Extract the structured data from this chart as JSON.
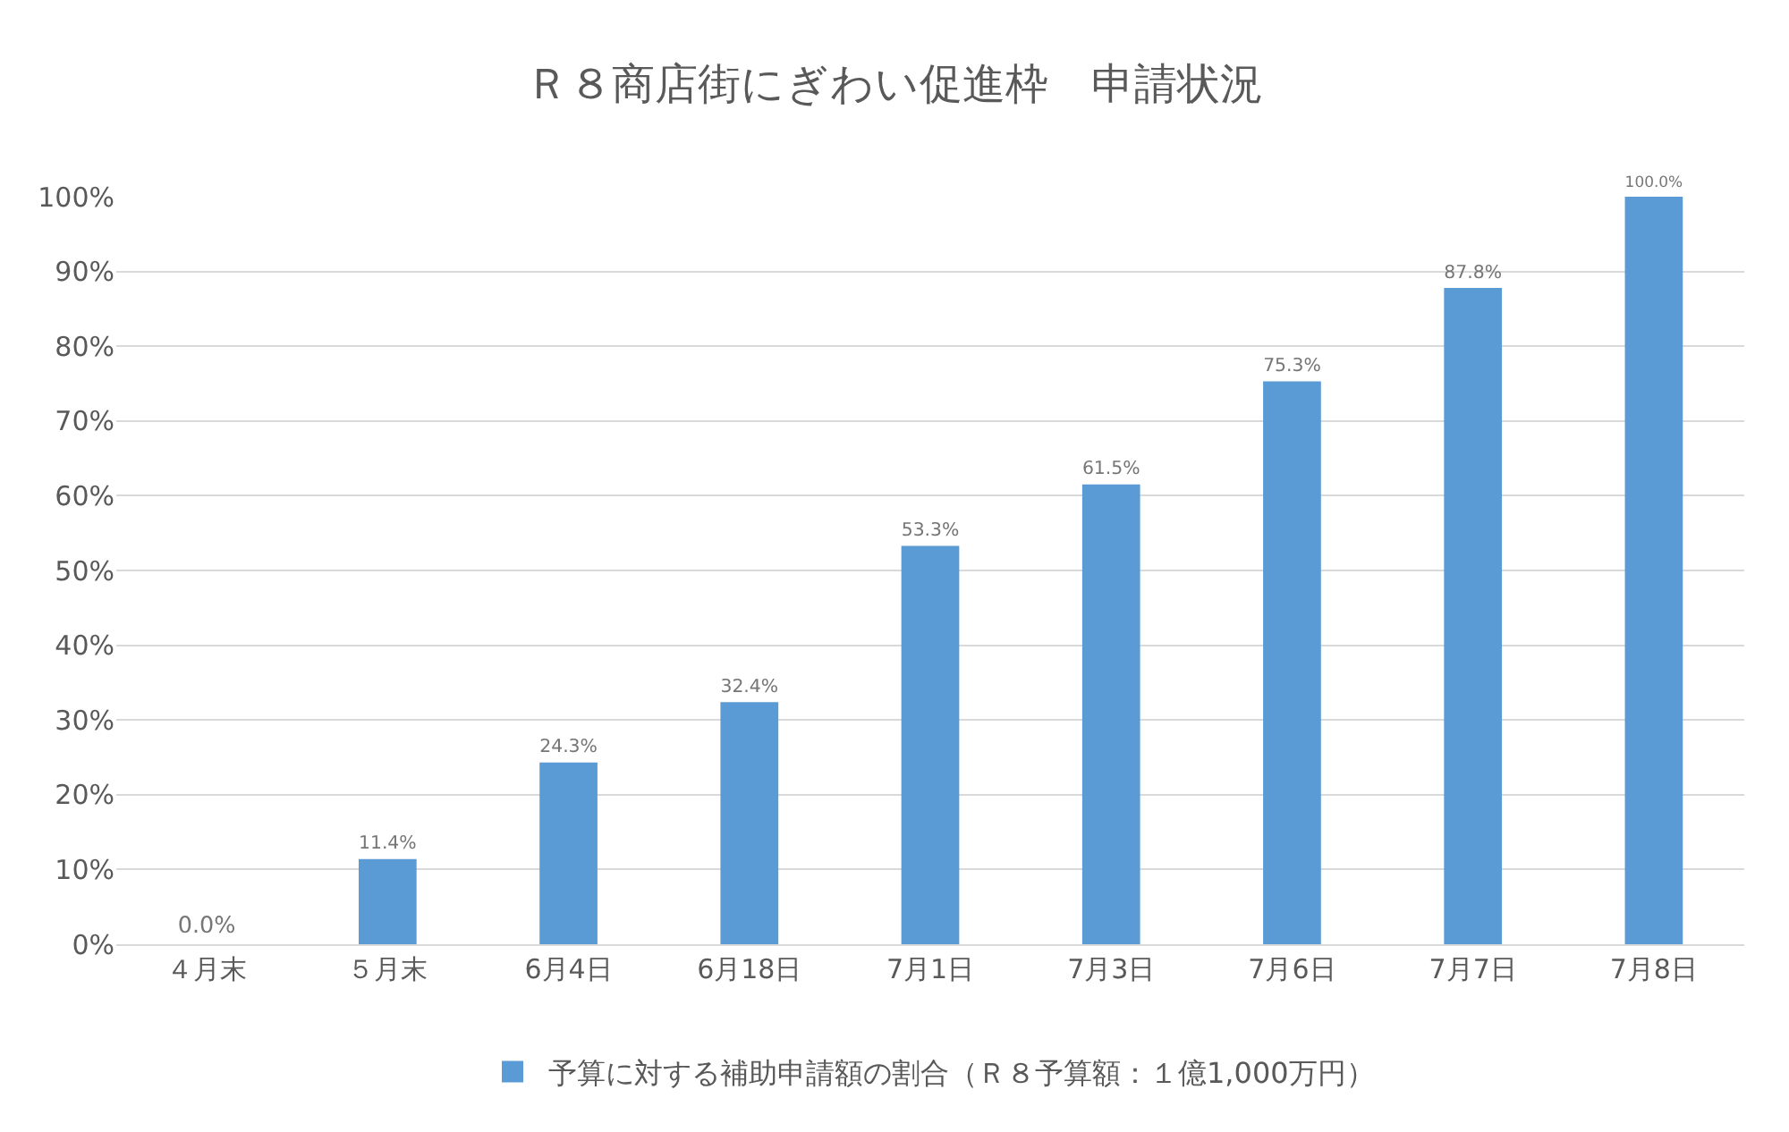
{
  "chart_data": {
    "type": "bar",
    "title": "Ｒ８商店街にぎわい促進枠　申請状況",
    "categories": [
      "４月末",
      "５月末",
      "6月4日",
      "6月18日",
      "7月1日",
      "7月3日",
      "7月6日",
      "7月7日",
      "7月8日"
    ],
    "series": [
      {
        "name": "予算に対する補助申請額の割合（Ｒ８予算額：１億1,000万円）",
        "color": "#5b9bd5",
        "values": [
          0,
          11.4,
          24.3,
          32.4,
          53.3,
          61.5,
          75.3,
          87.8,
          100
        ],
        "value_labels": [
          "0.0%",
          "11.4%",
          "24.3%",
          "32.4%",
          "53.3%",
          "61.5%",
          "75.3%",
          "87.8%",
          "100.0%"
        ]
      }
    ],
    "ylim": [
      0,
      100
    ],
    "yticks": [
      {
        "value": 0,
        "label": "0%"
      },
      {
        "value": 10,
        "label": "10%"
      },
      {
        "value": 20,
        "label": "20%"
      },
      {
        "value": 30,
        "label": "30%"
      },
      {
        "value": 40,
        "label": "40%"
      },
      {
        "value": 50,
        "label": "50%"
      },
      {
        "value": 60,
        "label": "60%"
      },
      {
        "value": 70,
        "label": "70%"
      },
      {
        "value": 80,
        "label": "80%"
      },
      {
        "value": 90,
        "label": "90%"
      },
      {
        "value": 100,
        "label": "100%"
      }
    ],
    "grid": "y",
    "legend": "bottom"
  }
}
